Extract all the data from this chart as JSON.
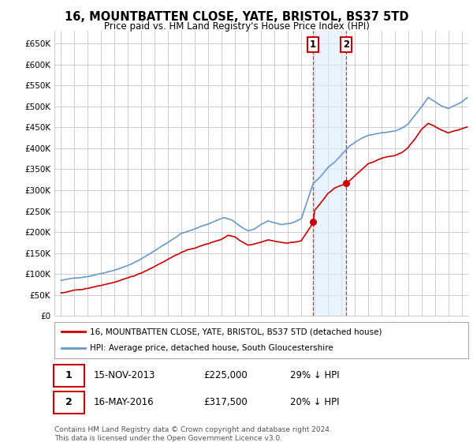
{
  "title": "16, MOUNTBATTEN CLOSE, YATE, BRISTOL, BS37 5TD",
  "subtitle": "Price paid vs. HM Land Registry's House Price Index (HPI)",
  "legend_line1": "16, MOUNTBATTEN CLOSE, YATE, BRISTOL, BS37 5TD (detached house)",
  "legend_line2": "HPI: Average price, detached house, South Gloucestershire",
  "annotation1_date": "15-NOV-2013",
  "annotation1_price": "£225,000",
  "annotation1_hpi": "29% ↓ HPI",
  "annotation2_date": "16-MAY-2016",
  "annotation2_price": "£317,500",
  "annotation2_hpi": "20% ↓ HPI",
  "footer": "Contains HM Land Registry data © Crown copyright and database right 2024.\nThis data is licensed under the Open Government Licence v3.0.",
  "hpi_color": "#6699cc",
  "price_color": "#cc0000",
  "background_color": "#ffffff",
  "grid_color": "#cccccc",
  "shade_color": "#ddeeff",
  "sale1_x": 2013.875,
  "sale1_y": 225000,
  "sale2_x": 2016.375,
  "sale2_y": 317500,
  "ylim": [
    0,
    680000
  ],
  "xlim": [
    1994.5,
    2025.5
  ],
  "ytick_vals": [
    0,
    50000,
    100000,
    150000,
    200000,
    250000,
    300000,
    350000,
    400000,
    450000,
    500000,
    550000,
    600000,
    650000
  ],
  "ytick_labels": [
    "£0",
    "£50K",
    "£100K",
    "£150K",
    "£200K",
    "£250K",
    "£300K",
    "£350K",
    "£400K",
    "£450K",
    "£500K",
    "£550K",
    "£600K",
    "£650K"
  ]
}
